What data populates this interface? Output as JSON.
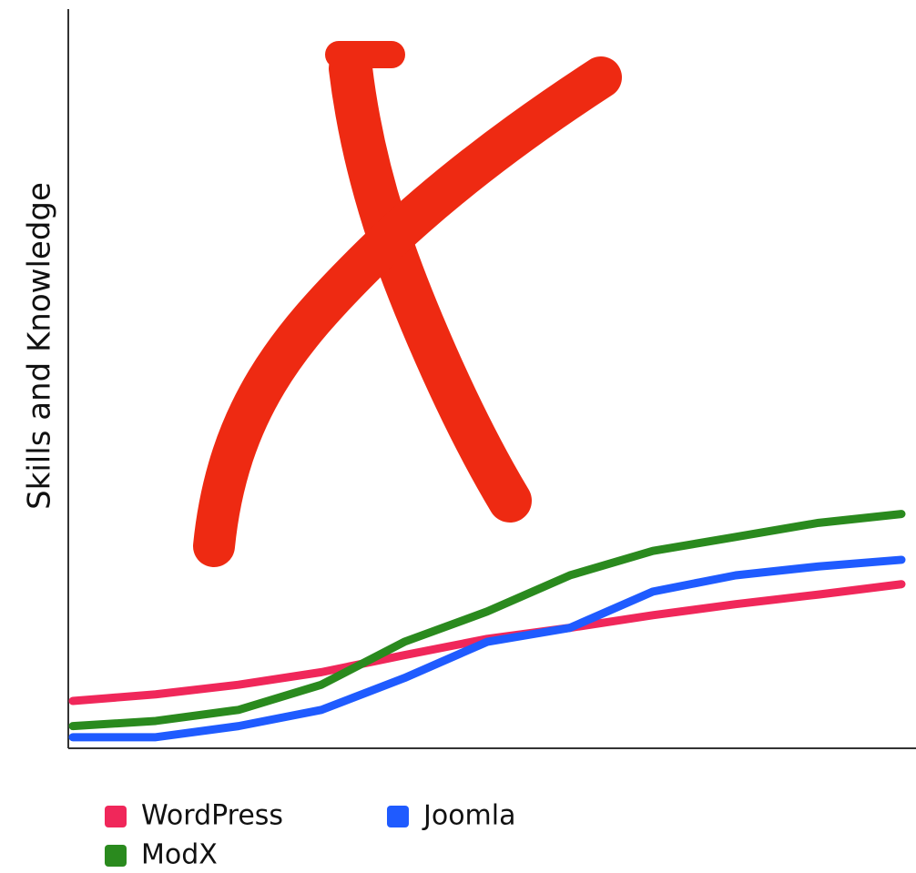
{
  "chart_data": {
    "type": "line",
    "y_label": "Skills and Knowledge",
    "x": [
      0,
      1,
      2,
      3,
      4,
      5,
      6,
      7,
      8,
      9,
      10
    ],
    "xlim": [
      0,
      10
    ],
    "ylim": [
      0,
      100
    ],
    "series": [
      {
        "name": "WordPress",
        "color": "#f0275a",
        "values": [
          6.4,
          7.3,
          8.6,
          10.3,
          12.6,
          14.8,
          16.3,
          18.0,
          19.5,
          20.8,
          22.2
        ]
      },
      {
        "name": "ModX",
        "color": "#2a8a1e",
        "values": [
          3.0,
          3.7,
          5.2,
          8.6,
          14.4,
          18.5,
          23.4,
          26.7,
          28.6,
          30.5,
          31.7
        ]
      },
      {
        "name": "Joomla",
        "color": "#1f5bff",
        "values": [
          1.5,
          1.5,
          3.0,
          5.2,
          9.5,
          14.4,
          16.3,
          21.2,
          23.4,
          24.6,
          25.5
        ]
      }
    ]
  }
}
